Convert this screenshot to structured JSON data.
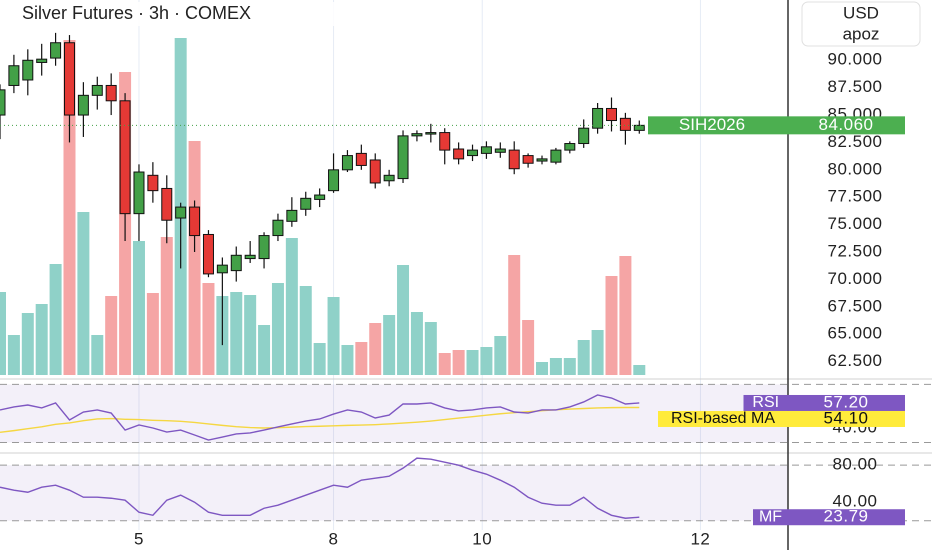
{
  "currency": "USD",
  "user": "apoz",
  "chart_data": [
    {
      "type": "candlestick",
      "title": "Silver Futures · 3h · COMEX",
      "symbol": "SIH2026",
      "up_color": "#43a047",
      "down_color": "#e53935",
      "xgrid": true,
      "xlim": [
        0,
        56.7
      ],
      "xticks": [
        {
          "value": 10,
          "label": "5"
        },
        {
          "value": 24,
          "label": "8"
        },
        {
          "value": 34.7,
          "label": "10"
        },
        {
          "value": 50.4,
          "label": "12"
        }
      ],
      "ylim": [
        61,
        95.5
      ],
      "yticks": [
        {
          "value": 62.5,
          "label": "62.500"
        },
        {
          "value": 65,
          "label": "65.000"
        },
        {
          "value": 67.5,
          "label": "67.500"
        },
        {
          "value": 70,
          "label": "70.000"
        },
        {
          "value": 72.5,
          "label": "72.500"
        },
        {
          "value": 75,
          "label": "75.000"
        },
        {
          "value": 77.5,
          "label": "77.500"
        },
        {
          "value": 80,
          "label": "80.000"
        },
        {
          "value": 82.5,
          "label": "82.500"
        },
        {
          "value": 85,
          "label": "85.000"
        },
        {
          "value": 87.5,
          "label": "87.500"
        },
        {
          "value": 90,
          "label": "90.000"
        }
      ],
      "open": [
        85.0,
        87.7,
        88.2,
        89.8,
        90.2,
        91.6,
        85.0,
        86.8,
        87.7,
        86.3,
        76.0,
        79.5,
        78.3,
        75.6,
        76.6,
        74.1,
        70.6,
        70.8,
        71.9,
        71.9,
        74.0,
        75.3,
        76.4,
        77.3,
        78.1,
        80.0,
        81.5,
        80.9,
        79.0,
        79.2,
        83.1,
        83.3,
        83.4,
        81.9,
        81.3,
        81.5,
        81.6,
        81.8,
        81.3,
        80.8,
        80.7,
        81.8,
        82.4,
        83.8,
        85.6,
        84.7,
        83.6
      ],
      "high": [
        87.8,
        90.5,
        91.0,
        91.5,
        92.5,
        92.3,
        88.0,
        88.5,
        88.8,
        87.0,
        80.5,
        80.7,
        79.5,
        77.0,
        77.2,
        74.5,
        72.0,
        73.0,
        73.5,
        74.3,
        76.0,
        77.5,
        78.0,
        78.3,
        81.5,
        81.8,
        82.3,
        81.5,
        80.0,
        83.6,
        83.6,
        84.2,
        83.8,
        82.5,
        82.3,
        82.6,
        82.5,
        82.6,
        81.5,
        81.3,
        82.0,
        82.6,
        84.6,
        86.1,
        86.6,
        85.2,
        84.5
      ],
      "low": [
        82.8,
        87.0,
        86.8,
        88.6,
        89.5,
        82.5,
        83.0,
        85.5,
        85.0,
        73.5,
        73.5,
        77.0,
        73.3,
        71.0,
        72.5,
        70.2,
        64.0,
        69.8,
        71.5,
        71.0,
        73.5,
        74.8,
        75.8,
        76.6,
        77.9,
        79.8,
        80.0,
        78.3,
        78.5,
        78.8,
        82.6,
        82.5,
        80.5,
        80.5,
        80.8,
        81.0,
        81.1,
        79.6,
        80.2,
        80.5,
        80.5,
        81.5,
        82.0,
        83.3,
        83.5,
        82.3,
        83.3
      ],
      "close": [
        87.3,
        89.5,
        90.0,
        90.1,
        91.6,
        85.0,
        86.8,
        87.7,
        86.3,
        76.0,
        79.8,
        78.1,
        75.4,
        76.6,
        74.0,
        70.5,
        71.3,
        72.2,
        72.2,
        74.0,
        75.4,
        76.3,
        77.4,
        77.7,
        80.0,
        81.3,
        80.4,
        78.8,
        79.5,
        83.1,
        83.3,
        83.4,
        81.8,
        81.0,
        81.8,
        82.1,
        81.9,
        80.1,
        80.6,
        81.0,
        81.8,
        82.4,
        83.8,
        85.6,
        84.5,
        83.6,
        84.06
      ],
      "last_label": {
        "value": 84.06,
        "label": "84.060"
      },
      "volume": {
        "up_color": "#8fd1c8",
        "down_color": "#f5a5a5",
        "ylim": [
          0,
          340
        ],
        "values": [
          83,
          40,
          62,
          71,
          111,
          335,
          163,
          40,
          79,
          303,
          134,
          82,
          138,
          337,
          234,
          92,
          79,
          83,
          80,
          50,
          92,
          137,
          89,
          32,
          78,
          30,
          33,
          52,
          60,
          110,
          63,
          53,
          22,
          25,
          25,
          28,
          39,
          120,
          55,
          13,
          17,
          17,
          35,
          45,
          99,
          119,
          10
        ]
      }
    },
    {
      "type": "line",
      "ylim": [
        23.5,
        73
      ],
      "yticks": [
        {
          "value": 40,
          "label": "40.00"
        }
      ],
      "bands": [
        30,
        70
      ],
      "series": [
        {
          "name": "RSI",
          "color": "#7e57c2",
          "label_color": "#7e57c2",
          "last_label": {
            "value": 57.2,
            "label": "57.20"
          },
          "values": [
            52.4,
            54.5,
            55.8,
            53.8,
            57.2,
            45.5,
            51.0,
            52.4,
            50.3,
            38.6,
            42.1,
            40.0,
            37.2,
            38.6,
            35.2,
            31.7,
            33.8,
            35.9,
            36.6,
            38.6,
            40.7,
            42.8,
            44.8,
            46.2,
            49.6,
            52.4,
            51.0,
            46.9,
            48.9,
            56.5,
            56.5,
            57.2,
            53.8,
            51.7,
            52.4,
            53.8,
            54.5,
            51.0,
            50.3,
            52.4,
            52.4,
            54.5,
            57.9,
            62.7,
            60.6,
            56.5,
            57.2
          ]
        },
        {
          "name": "RSI-based MA",
          "color": "#f5d742",
          "label_color": "#ffeb3b",
          "last_label": {
            "value": 54.1,
            "label": "54.10"
          },
          "values": [
            37.0,
            38.2,
            39.5,
            40.8,
            42.5,
            43.5,
            45.0,
            46.2,
            46.5,
            46.0,
            45.8,
            45.3,
            45.0,
            44.6,
            43.8,
            42.8,
            41.8,
            40.9,
            40.3,
            40.0,
            40.2,
            40.6,
            41.0,
            41.2,
            41.5,
            41.8,
            42.0,
            42.3,
            42.8,
            43.4,
            44.0,
            44.8,
            45.8,
            46.8,
            47.8,
            48.8,
            49.8,
            50.5,
            51.2,
            51.9,
            52.5,
            53.0,
            53.4,
            53.8,
            54.0,
            54.1,
            54.1
          ]
        }
      ]
    },
    {
      "type": "line",
      "ylim": [
        10,
        91
      ],
      "yticks": [
        {
          "value": 40,
          "label": "40.00"
        },
        {
          "value": 80,
          "label": "80.00"
        }
      ],
      "bands": [
        20,
        80
      ],
      "series": [
        {
          "name": "MF",
          "color": "#7e57c2",
          "label_color": "#7e57c2",
          "last_label": {
            "value": 23.79,
            "label": "23.79"
          },
          "values": [
            56.2,
            53.0,
            50.8,
            56.2,
            58.4,
            53.0,
            45.4,
            45.4,
            44.3,
            42.2,
            29.2,
            25.9,
            42.2,
            47.6,
            40.0,
            29.2,
            25.9,
            25.9,
            25.9,
            33.5,
            36.8,
            42.2,
            47.6,
            53.0,
            58.4,
            56.2,
            63.8,
            65.9,
            68.1,
            76.8,
            87.6,
            86.5,
            83.2,
            80.0,
            74.6,
            70.3,
            63.8,
            56.2,
            45.4,
            38.9,
            36.8,
            36.8,
            45.4,
            33.5,
            25.9,
            22.7,
            23.79
          ]
        }
      ]
    }
  ]
}
